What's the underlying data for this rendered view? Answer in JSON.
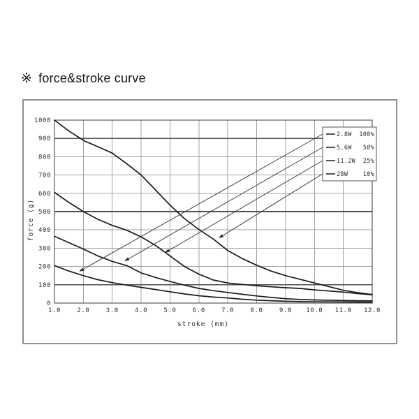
{
  "page": {
    "title_icon": "※",
    "title": "force&stroke curve"
  },
  "chart_data": {
    "type": "line",
    "title": "force&stroke curve",
    "xlabel": "stroke (mm)",
    "ylabel": "force (g)",
    "xlim": [
      1.0,
      12.0
    ],
    "ylim": [
      0,
      1000
    ],
    "x_ticks": [
      "1.0",
      "2.0",
      "3.0",
      "4.0",
      "5.0",
      "6.0",
      "7.0",
      "8.0",
      "9.0",
      "10.0",
      "11.0",
      "12.0"
    ],
    "y_ticks": [
      "0",
      "100",
      "200",
      "300",
      "400",
      "500",
      "600",
      "700",
      "800",
      "900",
      "1000"
    ],
    "grid": true,
    "accent_y_gridlines": [
      100,
      500,
      900
    ],
    "legend_position": "top-right",
    "series": [
      {
        "name": "2.8W 100%",
        "power": "2.8W",
        "duty": "100%",
        "arrow_tip": [
          1.85,
          172
        ],
        "points": [
          [
            1,
            205
          ],
          [
            1.5,
            175
          ],
          [
            2,
            150
          ],
          [
            2.5,
            128
          ],
          [
            3,
            112
          ],
          [
            3.5,
            98
          ],
          [
            4,
            86
          ],
          [
            4.5,
            74
          ],
          [
            5,
            62
          ],
          [
            5.5,
            50
          ],
          [
            6,
            40
          ],
          [
            6.5,
            33
          ],
          [
            7,
            28
          ],
          [
            7.5,
            21
          ],
          [
            8,
            16
          ],
          [
            8.5,
            13
          ],
          [
            9,
            10
          ],
          [
            9.5,
            8
          ],
          [
            10,
            7
          ],
          [
            11,
            6
          ],
          [
            12,
            5
          ]
        ]
      },
      {
        "name": "5.6W 50%",
        "power": "5.6W",
        "duty": "50%",
        "arrow_tip": [
          3.42,
          229
        ],
        "points": [
          [
            1,
            365
          ],
          [
            1.5,
            330
          ],
          [
            2,
            295
          ],
          [
            2.5,
            258
          ],
          [
            3,
            228
          ],
          [
            3.5,
            205
          ],
          [
            4,
            165
          ],
          [
            4.5,
            140
          ],
          [
            5,
            118
          ],
          [
            5.5,
            98
          ],
          [
            6,
            80
          ],
          [
            6.5,
            68
          ],
          [
            7,
            58
          ],
          [
            7.5,
            48
          ],
          [
            8,
            39
          ],
          [
            8.5,
            31
          ],
          [
            9,
            24
          ],
          [
            9.5,
            20
          ],
          [
            10,
            17
          ],
          [
            11,
            14
          ],
          [
            12,
            12
          ]
        ]
      },
      {
        "name": "11.2W 25%",
        "power": "11.2W",
        "duty": "25%",
        "arrow_tip": [
          4.82,
          275
        ],
        "points": [
          [
            1,
            605
          ],
          [
            1.5,
            550
          ],
          [
            2,
            500
          ],
          [
            2.5,
            458
          ],
          [
            3,
            425
          ],
          [
            3.5,
            398
          ],
          [
            4,
            362
          ],
          [
            4.5,
            315
          ],
          [
            5,
            258
          ],
          [
            5.5,
            200
          ],
          [
            6,
            158
          ],
          [
            6.5,
            126
          ],
          [
            7,
            110
          ],
          [
            7.5,
            102
          ],
          [
            8,
            95
          ],
          [
            8.5,
            89
          ],
          [
            9,
            84
          ],
          [
            9.5,
            80
          ],
          [
            10,
            72
          ],
          [
            10.5,
            66
          ],
          [
            11,
            60
          ],
          [
            11.5,
            52
          ],
          [
            12,
            45
          ]
        ]
      },
      {
        "name": "28W 10%",
        "power": "28W",
        "duty": "10%",
        "arrow_tip": [
          6.68,
          355
        ],
        "points": [
          [
            1,
            1000
          ],
          [
            1.5,
            940
          ],
          [
            2.05,
            885
          ],
          [
            2.5,
            855
          ],
          [
            3,
            820
          ],
          [
            3.5,
            762
          ],
          [
            4,
            700
          ],
          [
            4.5,
            618
          ],
          [
            5,
            535
          ],
          [
            5.5,
            462
          ],
          [
            6,
            402
          ],
          [
            6.5,
            350
          ],
          [
            7,
            287
          ],
          [
            7.5,
            243
          ],
          [
            8,
            207
          ],
          [
            8.5,
            175
          ],
          [
            9,
            150
          ],
          [
            9.5,
            130
          ],
          [
            10,
            110
          ],
          [
            10.5,
            90
          ],
          [
            11,
            70
          ],
          [
            11.5,
            57
          ],
          [
            12,
            47
          ]
        ]
      }
    ],
    "colors": {
      "curve": "#1a1a1a",
      "gridline": "#a0a0a0",
      "accent_gridline": "#4f4f4f",
      "plot_frame": "#3a3a3a",
      "panel_border": "#8f8f8f",
      "leader_line": "#3f3f3f",
      "background": "#ffffff"
    }
  }
}
